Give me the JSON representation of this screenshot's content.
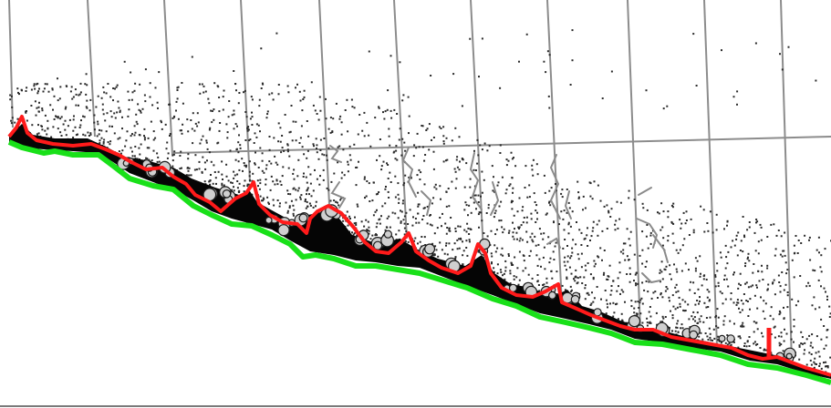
{
  "image": {
    "background": "#ffffff",
    "colors": {
      "grid_line": "#8c8c8c",
      "speckle": "#2a2a2a",
      "cavity_fill": "#050505",
      "bubble_fill": "#cfcfcf",
      "detected_boundary": "#ff1a1a",
      "reference_boundary": "#19e019",
      "marker": "#ff1a1a",
      "bottom_rule": "#7a7a7a"
    },
    "layers": [
      "vertical-grid-lines",
      "horizontal-grid-line",
      "speckle-region",
      "dark-cavity",
      "bubble-clusters",
      "reference-boundary",
      "detected-boundary",
      "marker",
      "bottom-rule"
    ]
  }
}
